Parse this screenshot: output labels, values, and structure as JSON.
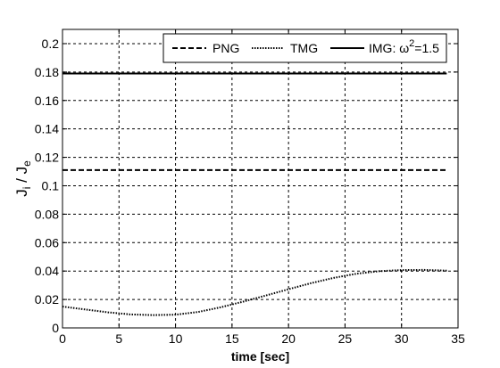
{
  "chart_data": {
    "type": "line",
    "xlabel": "time [sec]",
    "ylabel": {
      "main": "J",
      "sub": "i",
      "sep": " / ",
      "main2": "J",
      "sub2": "e"
    },
    "xlim": [
      0,
      35
    ],
    "ylim": [
      0,
      0.21
    ],
    "xticks": [
      0,
      5,
      10,
      15,
      20,
      25,
      30,
      35
    ],
    "yticks": [
      0,
      0.02,
      0.04,
      0.06,
      0.08,
      0.1,
      0.12,
      0.14,
      0.16,
      0.18,
      0.2
    ],
    "ytick_labels": [
      "0",
      "0.02",
      "0.04",
      "0.06",
      "0.08",
      "0.1",
      "0.12",
      "0.14",
      "0.16",
      "0.18",
      "0.2"
    ],
    "grid": true,
    "legend_position": "top-right",
    "series": [
      {
        "name": "PNG",
        "style": "dashed",
        "x": [
          0,
          34
        ],
        "y": [
          0.111,
          0.111
        ]
      },
      {
        "name": "TMG",
        "style": "dotted",
        "x": [
          0,
          2,
          4,
          6,
          8,
          10,
          12,
          14,
          16,
          18,
          20,
          22,
          24,
          26,
          28,
          30,
          32,
          34
        ],
        "y": [
          0.015,
          0.013,
          0.011,
          0.0095,
          0.009,
          0.0093,
          0.0112,
          0.0145,
          0.0185,
          0.0228,
          0.0272,
          0.0315,
          0.0352,
          0.0381,
          0.0399,
          0.0407,
          0.0408,
          0.0403
        ]
      },
      {
        "name": "IMG: ω",
        "name_sup": "2",
        "name_tail": "=1.5",
        "style": "solid",
        "x": [
          0,
          34
        ],
        "y": [
          0.179,
          0.179
        ]
      }
    ]
  }
}
